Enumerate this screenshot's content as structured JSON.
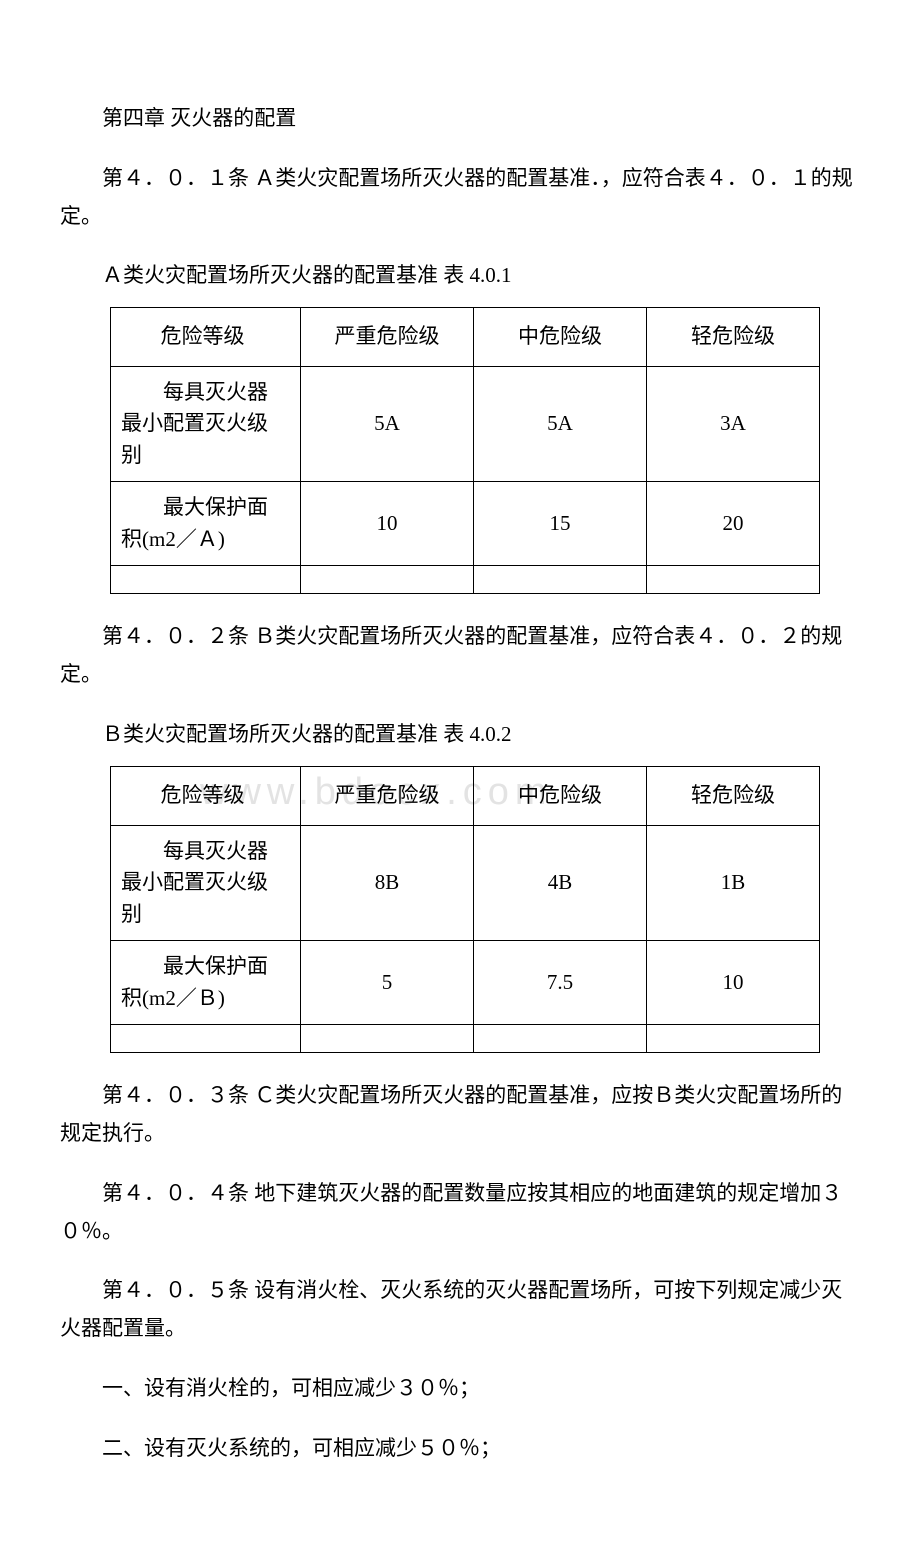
{
  "chapter_title": "第四章 灭火器的配置",
  "p1": "第４．０．１条 Ａ类火灾配置场所灭火器的配置基准．，应符合表４．０．１的规定。",
  "table1_title": "Ａ类火灾配置场所灭火器的配置基准 表 4.0.1",
  "table1": {
    "header": {
      "c1": "危险等级",
      "c2": "严重危险级",
      "c3": "中危险级",
      "c4": "轻危险级"
    },
    "row1": {
      "label_line1": "　　每具灭火器",
      "label_line2": "最小配置灭火级",
      "label_line3": "别",
      "c2": "5A",
      "c3": "5A",
      "c4": "3A"
    },
    "row2": {
      "label_line1": "　　最大保护面",
      "label_line2": "积(m2／Ａ)",
      "c2": "10",
      "c3": "15",
      "c4": "20"
    }
  },
  "p2": "第４．０．２条 Ｂ类火灾配置场所灭火器的配置基准，应符合表４．０．２的规定。",
  "table2_title": "Ｂ类火灾配置场所灭火器的配置基准 表 4.0.2",
  "table2": {
    "header": {
      "c1": "危险等级",
      "c2": "严重危险级",
      "c3": "中危险级",
      "c4": "轻危险级"
    },
    "row1": {
      "label_line1": "　　每具灭火器",
      "label_line2": "最小配置灭火级",
      "label_line3": "别",
      "c2": "8B",
      "c3": "4B",
      "c4": "1B"
    },
    "row2": {
      "label_line1": "　　最大保护面",
      "label_line2": "积(m2／Ｂ)",
      "c2": "5",
      "c3": "7.5",
      "c4": "10"
    }
  },
  "p3": "第４．０．３条 Ｃ类火灾配置场所灭火器的配置基准，应按Ｂ类火灾配置场所的规定执行。",
  "p4": "第４．０．４条 地下建筑灭火器的配置数量应按其相应的地面建筑的规定增加３０％。",
  "p5": "第４．０．５条 设有消火栓、灭火系统的灭火器配置场所，可按下列规定减少灭火器配置量。",
  "p6": "一、设有消火栓的，可相应减少３０％；",
  "p7": "二、设有灭火系统的，可相应减少５０％；",
  "watermark": "www.bdocx.com"
}
